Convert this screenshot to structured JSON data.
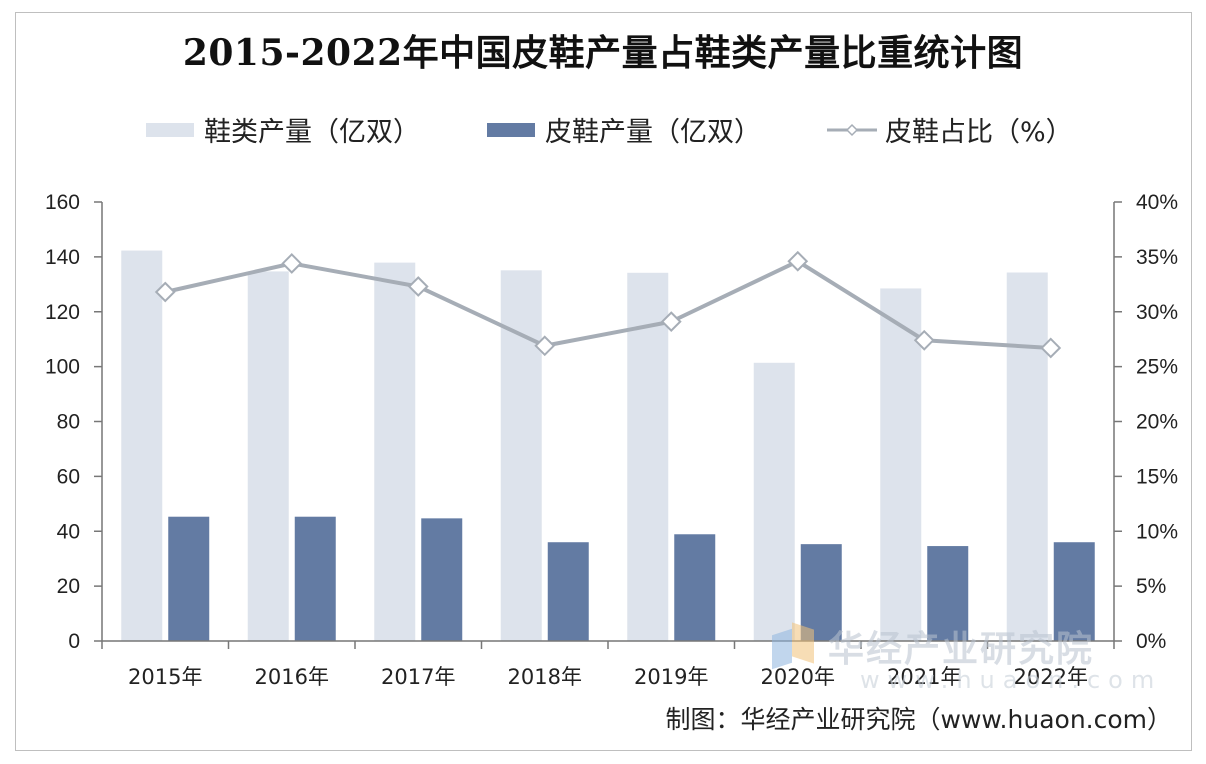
{
  "chart_data": {
    "type": "bar+line",
    "title": "2015-2022年中国皮鞋产量占鞋类产量比重统计图",
    "categories": [
      "2015年",
      "2016年",
      "2017年",
      "2018年",
      "2019年",
      "2020年",
      "2021年",
      "2022年"
    ],
    "series": [
      {
        "name": "鞋类产量（亿双）",
        "type": "bar",
        "axis": "left",
        "color": "#dde3ec",
        "values": [
          142.3,
          134.7,
          137.9,
          135.1,
          134.2,
          101.4,
          128.5,
          134.3
        ]
      },
      {
        "name": "皮鞋产量（亿双）",
        "type": "bar",
        "axis": "left",
        "color": "#637ba3",
        "values": [
          45.3,
          45.3,
          44.7,
          36.0,
          38.9,
          35.3,
          34.6,
          36.0
        ]
      },
      {
        "name": "皮鞋占比（%）",
        "type": "line",
        "axis": "right",
        "color": "#a6adb6",
        "values": [
          31.8,
          34.4,
          32.3,
          26.9,
          29.1,
          34.6,
          27.4,
          26.7
        ]
      }
    ],
    "y_left": {
      "min": 0,
      "max": 160,
      "step": 20,
      "ticks": [
        "0",
        "20",
        "40",
        "60",
        "80",
        "100",
        "120",
        "140",
        "160"
      ]
    },
    "y_right": {
      "min": 0,
      "max": 40,
      "step": 5,
      "ticks": [
        "0%",
        "5%",
        "10%",
        "15%",
        "20%",
        "25%",
        "30%",
        "35%",
        "40%"
      ]
    },
    "legend_position": "top"
  },
  "watermark": {
    "text": "华经产业研究院",
    "url": "www.huaon.com"
  },
  "credit": "制图：华经产业研究院（www.huaon.com）"
}
